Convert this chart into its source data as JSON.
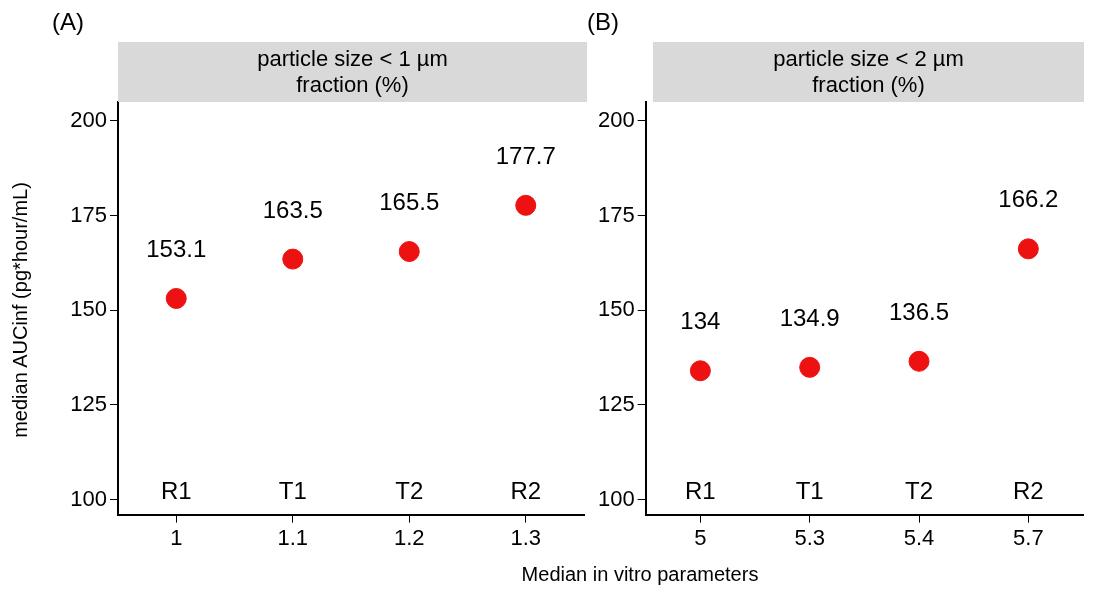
{
  "chart_data": [
    {
      "type": "scatter",
      "title": "particle size < 1 µm\nfraction (%)",
      "ylabel": "median AUCinf (pg*hour/mL)",
      "xlabel": "Median in vitro parameters",
      "categories": [
        "1",
        "1.1",
        "1.2",
        "1.3"
      ],
      "values": [
        153.1,
        163.5,
        165.5,
        177.7
      ],
      "color": "#ee1111",
      "marker": "circle",
      "data_labels": true,
      "ylim": [
        96,
        205
      ],
      "yticks": [
        100,
        125,
        150,
        175,
        200
      ],
      "grid": false,
      "legend": false,
      "annotations": [
        "(A)",
        "R1",
        "T1",
        "T2",
        "R2"
      ]
    },
    {
      "type": "scatter",
      "title": "particle size < 2 µm\nfraction (%)",
      "categories": [
        "5",
        "5.3",
        "5.4",
        "5.7"
      ],
      "values": [
        134,
        134.9,
        136.5,
        166.2
      ],
      "color": "#ee1111",
      "marker": "circle",
      "data_labels": true,
      "ylim": [
        96,
        205
      ],
      "yticks": [
        100,
        125,
        150,
        175,
        200
      ],
      "grid": false,
      "legend": false,
      "annotations": [
        "(B)",
        "R1",
        "T1",
        "T2",
        "R2"
      ]
    }
  ]
}
